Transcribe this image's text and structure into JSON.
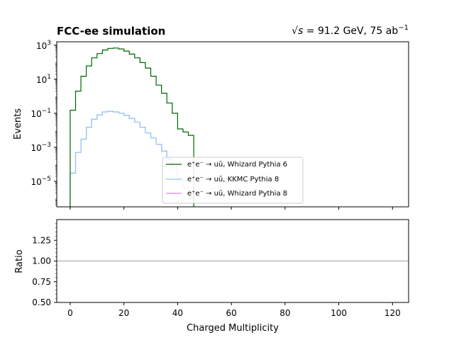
{
  "figure": {
    "title_left": "FCC-ee simulation",
    "title_right_sqrt": "√s",
    "title_right_rest": " = 91.2 GeV, 75 ab",
    "title_right_sup": "−1"
  },
  "chart_data": [
    {
      "type": "line",
      "panel": "main",
      "title": "",
      "xlabel": "",
      "ylabel": "Events",
      "xlim": [
        -5,
        126
      ],
      "ylim_log10": [
        -6.5,
        3.2
      ],
      "yscale": "log",
      "y_ticks": [
        {
          "exp": 3,
          "label": "10",
          "sup": "3"
        },
        {
          "exp": 1,
          "label": "10",
          "sup": "1"
        },
        {
          "exp": -1,
          "label": "10",
          "sup": "−1"
        },
        {
          "exp": -3,
          "label": "10",
          "sup": "−3"
        },
        {
          "exp": -5,
          "label": "10",
          "sup": "−5"
        }
      ],
      "x_ticks": [
        0,
        20,
        40,
        60,
        80,
        100,
        120
      ],
      "bin_width": 2,
      "legend_placement": "lower-center",
      "series": [
        {
          "name": "e⁺e⁻ → uū, Whizard Pythia 6",
          "color": "#006400",
          "bin_edges_start": 0,
          "values": [
            0.15,
            2,
            15,
            60,
            180,
            320,
            520,
            650,
            680,
            600,
            450,
            300,
            180,
            95,
            45,
            15,
            4.5,
            1.5,
            0.4,
            0.1,
            0.012,
            0.008,
            0.005,
            3e-07
          ]
        },
        {
          "name": "e⁺e⁻ → uū, KKMC Pythia 8",
          "color": "#8ecbf0",
          "bin_edges_start": 0,
          "values": [
            3e-05,
            0.0005,
            0.003,
            0.015,
            0.045,
            0.08,
            0.12,
            0.13,
            0.12,
            0.1,
            0.075,
            0.05,
            0.03,
            0.015,
            0.007,
            0.0035,
            0.0015,
            0.0006,
            0.0002,
            6e-05,
            1.5e-05,
            4e-06,
            1e-06,
            3e-07
          ]
        },
        {
          "name": "e⁺e⁻ → uū, Whizard Pythia 8",
          "color": "#e97ff0",
          "bin_edges_start": 0,
          "values": [
            3e-05,
            0.0005,
            0.003,
            0.015,
            0.045,
            0.08,
            0.12,
            0.13,
            0.12,
            0.1,
            0.075,
            0.05,
            0.03,
            0.015,
            0.007,
            0.0035,
            0.0015,
            0.0006,
            0.0002,
            6e-05,
            1.5e-05,
            4e-06,
            1e-06,
            3e-07
          ]
        }
      ]
    },
    {
      "type": "line",
      "panel": "ratio",
      "title": "",
      "xlabel": "Charged Multiplicity",
      "ylabel": "Ratio",
      "xlim": [
        -5,
        126
      ],
      "ylim": [
        0.5,
        1.5
      ],
      "y_ticks": [
        "0.50",
        "0.75",
        "1.00",
        "1.25"
      ],
      "x_ticks": [
        0,
        20,
        40,
        60,
        80,
        100,
        120
      ],
      "reference_line": 1.0,
      "reference_color": "#a0a0a0"
    }
  ]
}
